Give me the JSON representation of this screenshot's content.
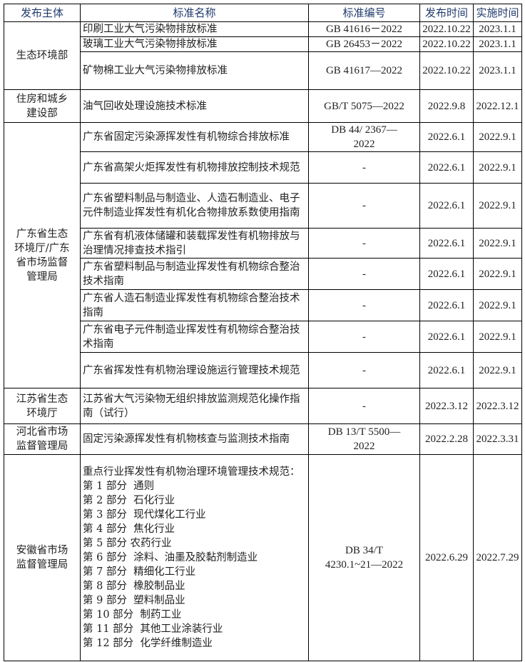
{
  "headers": [
    "发布主体",
    "标准名称",
    "标准编号",
    "发布时间",
    "实施时间"
  ],
  "groups": [
    {
      "org": "生态环境部",
      "rows": [
        {
          "name": "印刷工业大气污染物排放标准",
          "code": "GB 41616－2022",
          "pub": "2022.10.22",
          "impl": "2023.1.1"
        },
        {
          "name": "玻璃工业大气污染物排放标准",
          "code": "GB 26453－2022",
          "pub": "2022.10.22",
          "impl": "2023.1.1"
        },
        {
          "name": "矿物棉工业大气污染物排放标准",
          "code": "GB 41617—2022",
          "pub": "2022.10.22",
          "impl": "2023.1.1"
        }
      ]
    },
    {
      "org": "住房和城乡建设部",
      "rows": [
        {
          "name": "油气回收处理设施技术标准",
          "code": "GB/T 5075—2022",
          "pub": "2022.9.8",
          "impl": "2022.12.1"
        }
      ]
    },
    {
      "org": "广东省生态环境厅/广东省市场监督管理局",
      "rows": [
        {
          "name": "广东省固定污染源挥发性有机物综合排放标准",
          "code": "DB 44/ 2367—2022",
          "pub": "2022.6.1",
          "impl": "2022.9.1"
        },
        {
          "name": "广东省高架火炬挥发性有机物排放控制技术规范",
          "code": "-",
          "pub": "2022.6.1",
          "impl": "2022.9.1"
        },
        {
          "name": "广东省塑料制品与制造业、人造石制造业、电子元件制造业挥发性有机化合物排放系数使用指南",
          "code": "-",
          "pub": "2022.6.1",
          "impl": "2022.9.1"
        },
        {
          "name": "广东省有机液体储罐和装载挥发性有机物排放与治理情况排查技术指引",
          "code": "-",
          "pub": "2022.6.1",
          "impl": "2022.9.1"
        },
        {
          "name": "广东省塑料制品与制造业挥发性有机物综合整治技术指南",
          "code": "-",
          "pub": "2022.6.1",
          "impl": "2022.9.1"
        },
        {
          "name": "广东省人造石制造业挥发性有机物综合整治技术指南",
          "code": "-",
          "pub": "2022.6.1",
          "impl": "2022.9.1"
        },
        {
          "name": "广东省电子元件制造业挥发性有机物综合整治技术指南",
          "code": "-",
          "pub": "2022.6.1",
          "impl": "2022.9.1"
        },
        {
          "name": "广东省挥发性有机物治理设施运行管理技术规范",
          "code": "-",
          "pub": "2022.6.1",
          "impl": "2022.9.1"
        }
      ]
    },
    {
      "org": "江苏省生态环境厅",
      "rows": [
        {
          "name": "江苏省大气污染物无组织排放监测规范化操作指南（试行）",
          "code": "-",
          "pub": "2022.3.12",
          "impl": "2022.3.12"
        }
      ]
    },
    {
      "org": "河北省市场监督管理局",
      "rows": [
        {
          "name": "固定污染源挥发性有机物核查与监测技术指南",
          "code": "DB 13/T 5500—2022",
          "pub": "2022.2.28",
          "impl": "2022.3.31"
        }
      ]
    },
    {
      "org": "安徽省市场监督管理局",
      "rows": [
        {
          "name": "重点行业挥发性有机物治理环境管理技术规范：",
          "parts": [
            "第 1 部分  通则",
            "第 2 部分  石化行业",
            "第 3 部分  现代煤化工行业",
            "第 4 部分  焦化行业",
            "第 5 部分 农药行业",
            "第 6 部分  涂料、油墨及胶黏剂制造业",
            "第 7 部分  精细化工行业",
            "第 8 部分  橡胶制品业",
            "第 9 部分  塑料制品业",
            "第 10 部分  制药工业",
            "第 11 部分  其他工业涂装行业",
            "第 12 部分  化学纤维制造业"
          ],
          "code": "DB 34/T 4230.1~21—2022",
          "pub": "2022.6.29",
          "impl": "2022.7.29"
        }
      ]
    }
  ]
}
